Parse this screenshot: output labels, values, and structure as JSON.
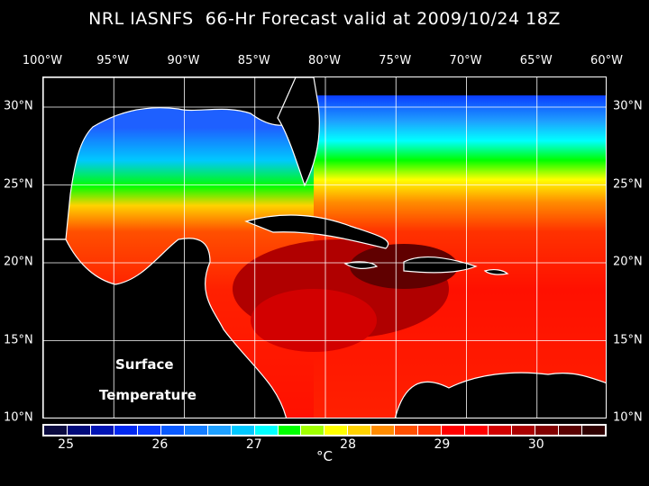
{
  "title": "NRL IASNFS  66-Hr Forecast valid at 2009/10/24 18Z",
  "lon_ticks": [
    {
      "value": 100,
      "label": "100°W"
    },
    {
      "value": 95,
      "label": "95°W"
    },
    {
      "value": 90,
      "label": "90°W"
    },
    {
      "value": 85,
      "label": "85°W"
    },
    {
      "value": 80,
      "label": "80°W"
    },
    {
      "value": 75,
      "label": "75°W"
    },
    {
      "value": 70,
      "label": "70°W"
    },
    {
      "value": 65,
      "label": "65°W"
    },
    {
      "value": 60,
      "label": "60°W"
    }
  ],
  "lat_ticks": [
    {
      "value": 30,
      "label": "30°N"
    },
    {
      "value": 25,
      "label": "25°N"
    },
    {
      "value": 20,
      "label": "20°N"
    },
    {
      "value": 15,
      "label": "15°N"
    },
    {
      "value": 10,
      "label": "10°N"
    }
  ],
  "map_label": {
    "line1": "Surface",
    "line2": "Temperature"
  },
  "colorbar": {
    "min": 24.75,
    "max": 30.75,
    "unit": "°C",
    "labels": [
      "25",
      "26",
      "27",
      "28",
      "29",
      "30"
    ],
    "colors": [
      "#0a0a40",
      "#000a7a",
      "#0014b4",
      "#0028f0",
      "#0a3cff",
      "#0a5aff",
      "#147dff",
      "#1ea0ff",
      "#00c8ff",
      "#00ffff",
      "#00ff00",
      "#a0ff00",
      "#ffff00",
      "#ffd200",
      "#ff8c00",
      "#ff5000",
      "#ff3200",
      "#ff0000",
      "#ff0000",
      "#d20000",
      "#aa0000",
      "#820000",
      "#5a0000",
      "#300000"
    ]
  }
}
